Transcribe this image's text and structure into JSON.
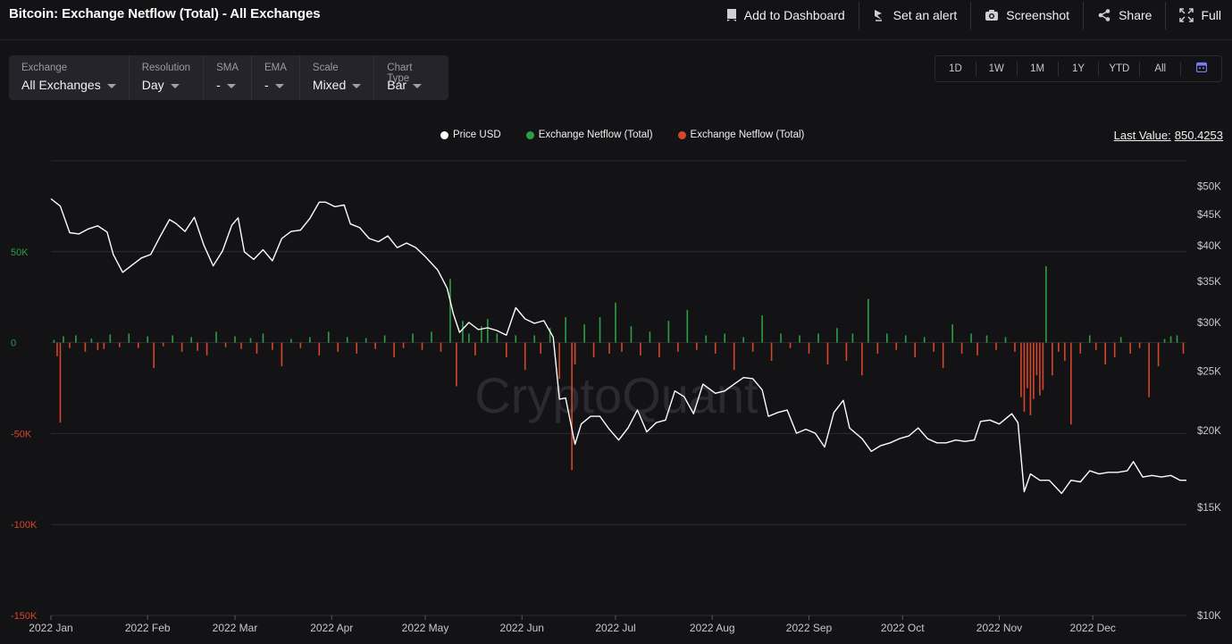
{
  "title": "Bitcoin: Exchange Netflow (Total) - All Exchanges",
  "actions": [
    {
      "label": "Add to Dashboard",
      "icon": "bookmark-icon"
    },
    {
      "label": "Set an alert",
      "icon": "alert-icon"
    },
    {
      "label": "Screenshot",
      "icon": "camera-icon"
    },
    {
      "label": "Share",
      "icon": "share-icon"
    },
    {
      "label": "Full",
      "icon": "fullscreen-icon"
    }
  ],
  "controls": [
    {
      "label": "Exchange",
      "value": "All Exchanges"
    },
    {
      "label": "Resolution",
      "value": "Day"
    },
    {
      "label": "SMA",
      "value": "-"
    },
    {
      "label": "EMA",
      "value": "-"
    },
    {
      "label": "Scale",
      "value": "Mixed"
    },
    {
      "label": "Chart Type",
      "value": "Bar"
    }
  ],
  "ranges": [
    "1D",
    "1W",
    "1M",
    "1Y",
    "YTD",
    "All"
  ],
  "calendar_icon": "calendar-icon",
  "last_value": {
    "label": "Last Value:",
    "value": "850.4253"
  },
  "watermark": "CryptoQuant",
  "colors": {
    "background": "#131316",
    "price": "#ffffff",
    "inflow": "#2e9e45",
    "outflow": "#d6462a",
    "axis_left_pos": "#2e9e45",
    "axis_left_neg": "#d6462a"
  },
  "chart_data": {
    "type": "bar",
    "legend": [
      {
        "name": "Price USD",
        "color": "#ffffff"
      },
      {
        "name": "Exchange Netflow (Total)",
        "color": "#2e9e45"
      },
      {
        "name": "Exchange Netflow (Total)",
        "color": "#d6462a"
      }
    ],
    "x_ticks": [
      "2022 Jan",
      "2022 Feb",
      "2022 Mar",
      "2022 Apr",
      "2022 May",
      "2022 Jun",
      "2022 Jul",
      "2022 Aug",
      "2022 Sep",
      "2022 Oct",
      "2022 Nov",
      "2022 Dec"
    ],
    "xlim": [
      "2022-01-01",
      "2022-12-31"
    ],
    "y_left": {
      "ticks": [
        "50K",
        "0",
        "-50K",
        "-100K",
        "-150K"
      ],
      "values": [
        50000,
        0,
        -50000,
        -100000,
        -150000
      ],
      "ylim": [
        -150000,
        100000
      ]
    },
    "y_right": {
      "ticks": [
        "$50K",
        "$45K",
        "$40K",
        "$35K",
        "$30K",
        "$25K",
        "$20K",
        "$15K",
        "$10K"
      ],
      "values": [
        50000,
        45000,
        40000,
        35000,
        30000,
        25000,
        20000,
        15000,
        10000
      ],
      "scale": "log",
      "ylim": [
        10000,
        55000
      ]
    },
    "price_usd": [
      [
        "2022-01-01",
        47700
      ],
      [
        "2022-01-04",
        46400
      ],
      [
        "2022-01-07",
        42000
      ],
      [
        "2022-01-10",
        41800
      ],
      [
        "2022-01-13",
        42600
      ],
      [
        "2022-01-16",
        43100
      ],
      [
        "2022-01-19",
        42100
      ],
      [
        "2022-01-21",
        38700
      ],
      [
        "2022-01-24",
        36200
      ],
      [
        "2022-01-27",
        37200
      ],
      [
        "2022-01-30",
        38200
      ],
      [
        "2022-02-02",
        38700
      ],
      [
        "2022-02-05",
        41400
      ],
      [
        "2022-02-08",
        44100
      ],
      [
        "2022-02-10",
        43500
      ],
      [
        "2022-02-13",
        42200
      ],
      [
        "2022-02-16",
        44500
      ],
      [
        "2022-02-19",
        40100
      ],
      [
        "2022-02-22",
        37100
      ],
      [
        "2022-02-25",
        39200
      ],
      [
        "2022-02-28",
        43200
      ],
      [
        "2022-03-02",
        44400
      ],
      [
        "2022-03-04",
        39100
      ],
      [
        "2022-03-07",
        38000
      ],
      [
        "2022-03-10",
        39400
      ],
      [
        "2022-03-13",
        37800
      ],
      [
        "2022-03-16",
        41100
      ],
      [
        "2022-03-19",
        42200
      ],
      [
        "2022-03-22",
        42400
      ],
      [
        "2022-03-25",
        44300
      ],
      [
        "2022-03-28",
        47100
      ],
      [
        "2022-03-30",
        47100
      ],
      [
        "2022-04-02",
        46300
      ],
      [
        "2022-04-05",
        46600
      ],
      [
        "2022-04-07",
        43400
      ],
      [
        "2022-04-10",
        42800
      ],
      [
        "2022-04-13",
        41100
      ],
      [
        "2022-04-16",
        40600
      ],
      [
        "2022-04-19",
        41500
      ],
      [
        "2022-04-22",
        39700
      ],
      [
        "2022-04-25",
        40400
      ],
      [
        "2022-04-28",
        39700
      ],
      [
        "2022-05-01",
        38400
      ],
      [
        "2022-05-05",
        36500
      ],
      [
        "2022-05-08",
        34100
      ],
      [
        "2022-05-10",
        31000
      ],
      [
        "2022-05-12",
        28900
      ],
      [
        "2022-05-15",
        30000
      ],
      [
        "2022-05-18",
        29200
      ],
      [
        "2022-05-21",
        29400
      ],
      [
        "2022-05-24",
        29100
      ],
      [
        "2022-05-27",
        28600
      ],
      [
        "2022-05-30",
        31700
      ],
      [
        "2022-06-02",
        30400
      ],
      [
        "2022-06-05",
        29900
      ],
      [
        "2022-06-08",
        30200
      ],
      [
        "2022-06-11",
        28400
      ],
      [
        "2022-06-13",
        22500
      ],
      [
        "2022-06-15",
        22600
      ],
      [
        "2022-06-18",
        19000
      ],
      [
        "2022-06-20",
        20500
      ],
      [
        "2022-06-23",
        21100
      ],
      [
        "2022-06-26",
        21100
      ],
      [
        "2022-06-29",
        20100
      ],
      [
        "2022-07-02",
        19300
      ],
      [
        "2022-07-05",
        20200
      ],
      [
        "2022-07-08",
        21600
      ],
      [
        "2022-07-11",
        19900
      ],
      [
        "2022-07-14",
        20600
      ],
      [
        "2022-07-17",
        20800
      ],
      [
        "2022-07-20",
        23200
      ],
      [
        "2022-07-23",
        22700
      ],
      [
        "2022-07-26",
        21300
      ],
      [
        "2022-07-29",
        23800
      ],
      [
        "2022-08-02",
        23000
      ],
      [
        "2022-08-05",
        23200
      ],
      [
        "2022-08-08",
        23800
      ],
      [
        "2022-08-11",
        24400
      ],
      [
        "2022-08-14",
        24300
      ],
      [
        "2022-08-17",
        23300
      ],
      [
        "2022-08-19",
        21100
      ],
      [
        "2022-08-22",
        21400
      ],
      [
        "2022-08-25",
        21600
      ],
      [
        "2022-08-28",
        19800
      ],
      [
        "2022-08-31",
        20100
      ],
      [
        "2022-09-03",
        19800
      ],
      [
        "2022-09-06",
        18800
      ],
      [
        "2022-09-09",
        21400
      ],
      [
        "2022-09-12",
        22400
      ],
      [
        "2022-09-14",
        20200
      ],
      [
        "2022-09-18",
        19400
      ],
      [
        "2022-09-21",
        18500
      ],
      [
        "2022-09-24",
        18900
      ],
      [
        "2022-09-27",
        19100
      ],
      [
        "2022-09-30",
        19400
      ],
      [
        "2022-10-03",
        19600
      ],
      [
        "2022-10-06",
        20200
      ],
      [
        "2022-10-09",
        19400
      ],
      [
        "2022-10-12",
        19100
      ],
      [
        "2022-10-15",
        19100
      ],
      [
        "2022-10-18",
        19300
      ],
      [
        "2022-10-21",
        19200
      ],
      [
        "2022-10-24",
        19300
      ],
      [
        "2022-10-26",
        20700
      ],
      [
        "2022-10-29",
        20800
      ],
      [
        "2022-11-01",
        20500
      ],
      [
        "2022-11-05",
        21300
      ],
      [
        "2022-11-07",
        20600
      ],
      [
        "2022-11-09",
        15900
      ],
      [
        "2022-11-11",
        17000
      ],
      [
        "2022-11-14",
        16600
      ],
      [
        "2022-11-17",
        16600
      ],
      [
        "2022-11-21",
        15800
      ],
      [
        "2022-11-24",
        16600
      ],
      [
        "2022-11-27",
        16500
      ],
      [
        "2022-11-30",
        17200
      ],
      [
        "2022-12-03",
        17000
      ],
      [
        "2022-12-06",
        17100
      ],
      [
        "2022-12-09",
        17100
      ],
      [
        "2022-12-12",
        17200
      ],
      [
        "2022-12-14",
        17800
      ],
      [
        "2022-12-17",
        16800
      ],
      [
        "2022-12-20",
        16900
      ],
      [
        "2022-12-23",
        16800
      ],
      [
        "2022-12-26",
        16900
      ],
      [
        "2022-12-29",
        16600
      ],
      [
        "2022-12-31",
        16600
      ]
    ],
    "netflow_total": [
      [
        "2022-01-02",
        1500
      ],
      [
        "2022-01-03",
        -7500
      ],
      [
        "2022-01-05",
        3500
      ],
      [
        "2022-01-04",
        -44000
      ],
      [
        "2022-01-07",
        -3000
      ],
      [
        "2022-01-09",
        4000
      ],
      [
        "2022-01-12",
        -5000
      ],
      [
        "2022-01-14",
        2200
      ],
      [
        "2022-01-16",
        -4000
      ],
      [
        "2022-01-18",
        -3500
      ],
      [
        "2022-01-20",
        4500
      ],
      [
        "2022-01-23",
        -2500
      ],
      [
        "2022-01-26",
        5000
      ],
      [
        "2022-01-29",
        -3000
      ],
      [
        "2022-02-01",
        3500
      ],
      [
        "2022-02-03",
        -14000
      ],
      [
        "2022-02-06",
        -2000
      ],
      [
        "2022-02-09",
        4000
      ],
      [
        "2022-02-12",
        -5000
      ],
      [
        "2022-02-15",
        3000
      ],
      [
        "2022-02-17",
        -4500
      ],
      [
        "2022-02-20",
        -7000
      ],
      [
        "2022-02-23",
        6000
      ],
      [
        "2022-02-26",
        -2500
      ],
      [
        "2022-03-01",
        3500
      ],
      [
        "2022-03-03",
        -3500
      ],
      [
        "2022-03-06",
        2500
      ],
      [
        "2022-03-08",
        -6000
      ],
      [
        "2022-03-10",
        5000
      ],
      [
        "2022-03-13",
        -4000
      ],
      [
        "2022-03-16",
        -13000
      ],
      [
        "2022-03-19",
        2000
      ],
      [
        "2022-03-22",
        -3000
      ],
      [
        "2022-03-25",
        3000
      ],
      [
        "2022-03-28",
        -7000
      ],
      [
        "2022-03-31",
        6000
      ],
      [
        "2022-04-03",
        -5000
      ],
      [
        "2022-04-06",
        3000
      ],
      [
        "2022-04-09",
        -6000
      ],
      [
        "2022-04-12",
        2500
      ],
      [
        "2022-04-15",
        -3500
      ],
      [
        "2022-04-18",
        4000
      ],
      [
        "2022-04-21",
        -8000
      ],
      [
        "2022-04-24",
        -3000
      ],
      [
        "2022-04-27",
        5000
      ],
      [
        "2022-04-30",
        -4000
      ],
      [
        "2022-05-03",
        6000
      ],
      [
        "2022-05-06",
        -5000
      ],
      [
        "2022-05-09",
        35000
      ],
      [
        "2022-05-11",
        -24000
      ],
      [
        "2022-05-13",
        12000
      ],
      [
        "2022-05-15",
        5000
      ],
      [
        "2022-05-17",
        -7000
      ],
      [
        "2022-05-19",
        9000
      ],
      [
        "2022-05-21",
        13000
      ],
      [
        "2022-05-24",
        5000
      ],
      [
        "2022-05-27",
        -8000
      ],
      [
        "2022-05-30",
        4000
      ],
      [
        "2022-06-02",
        -15000
      ],
      [
        "2022-06-05",
        4000
      ],
      [
        "2022-06-07",
        -6000
      ],
      [
        "2022-06-10",
        8000
      ],
      [
        "2022-06-13",
        -20000
      ],
      [
        "2022-06-15",
        14000
      ],
      [
        "2022-06-17",
        -70000
      ],
      [
        "2022-06-18",
        -12000
      ],
      [
        "2022-06-21",
        10000
      ],
      [
        "2022-06-24",
        -8000
      ],
      [
        "2022-06-26",
        14000
      ],
      [
        "2022-06-29",
        -6000
      ],
      [
        "2022-07-01",
        22000
      ],
      [
        "2022-07-03",
        -5000
      ],
      [
        "2022-07-06",
        9000
      ],
      [
        "2022-07-09",
        -7000
      ],
      [
        "2022-07-12",
        6000
      ],
      [
        "2022-07-15",
        -8000
      ],
      [
        "2022-07-18",
        12000
      ],
      [
        "2022-07-21",
        -5000
      ],
      [
        "2022-07-24",
        18000
      ],
      [
        "2022-07-27",
        -4000
      ],
      [
        "2022-07-30",
        4000
      ],
      [
        "2022-08-02",
        -6000
      ],
      [
        "2022-08-05",
        5000
      ],
      [
        "2022-08-08",
        -15000
      ],
      [
        "2022-08-11",
        3000
      ],
      [
        "2022-08-14",
        -5000
      ],
      [
        "2022-08-17",
        15000
      ],
      [
        "2022-08-20",
        -10000
      ],
      [
        "2022-08-23",
        5000
      ],
      [
        "2022-08-26",
        -3000
      ],
      [
        "2022-08-29",
        4000
      ],
      [
        "2022-09-01",
        -6000
      ],
      [
        "2022-09-04",
        5000
      ],
      [
        "2022-09-07",
        -12000
      ],
      [
        "2022-09-10",
        8000
      ],
      [
        "2022-09-13",
        -10000
      ],
      [
        "2022-09-15",
        5000
      ],
      [
        "2022-09-18",
        -18000
      ],
      [
        "2022-09-20",
        24000
      ],
      [
        "2022-09-23",
        -6000
      ],
      [
        "2022-09-26",
        5000
      ],
      [
        "2022-09-29",
        -4000
      ],
      [
        "2022-10-02",
        4000
      ],
      [
        "2022-10-05",
        -8000
      ],
      [
        "2022-10-08",
        3000
      ],
      [
        "2022-10-11",
        -5000
      ],
      [
        "2022-10-14",
        -14000
      ],
      [
        "2022-10-17",
        10000
      ],
      [
        "2022-10-20",
        -6000
      ],
      [
        "2022-10-23",
        5000
      ],
      [
        "2022-10-25",
        -7000
      ],
      [
        "2022-10-28",
        4000
      ],
      [
        "2022-10-31",
        -4000
      ],
      [
        "2022-11-03",
        3000
      ],
      [
        "2022-11-06",
        -5000
      ],
      [
        "2022-11-08",
        -30000
      ],
      [
        "2022-11-09",
        -38000
      ],
      [
        "2022-11-10",
        -25000
      ],
      [
        "2022-11-11",
        -40000
      ],
      [
        "2022-11-12",
        -31000
      ],
      [
        "2022-11-13",
        -18000
      ],
      [
        "2022-11-14",
        -29000
      ],
      [
        "2022-11-15",
        -26000
      ],
      [
        "2022-11-16",
        42000
      ],
      [
        "2022-11-18",
        -18000
      ],
      [
        "2022-11-20",
        -5000
      ],
      [
        "2022-11-22",
        -10000
      ],
      [
        "2022-11-24",
        -45000
      ],
      [
        "2022-11-27",
        -6000
      ],
      [
        "2022-11-30",
        4000
      ],
      [
        "2022-12-02",
        -4000
      ],
      [
        "2022-12-05",
        -12000
      ],
      [
        "2022-12-08",
        -8000
      ],
      [
        "2022-12-10",
        3000
      ],
      [
        "2022-12-13",
        -6000
      ],
      [
        "2022-12-16",
        -3000
      ],
      [
        "2022-12-19",
        -30000
      ],
      [
        "2022-12-22",
        -13000
      ],
      [
        "2022-12-24",
        2000
      ],
      [
        "2022-12-26",
        3500
      ],
      [
        "2022-12-28",
        4000
      ],
      [
        "2022-12-30",
        -6000
      ]
    ]
  }
}
